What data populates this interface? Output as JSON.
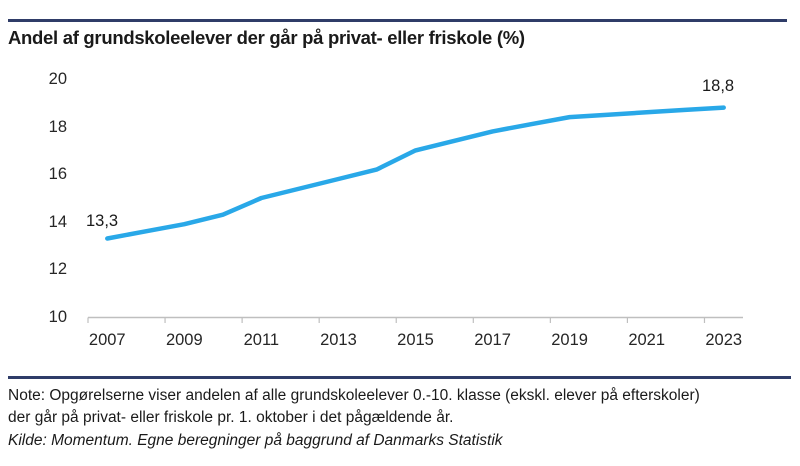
{
  "chart_data": {
    "type": "line",
    "title": "Andel af grundskoleelever der går på privat- eller friskole (%)",
    "xlabel": "",
    "ylabel": "",
    "x": [
      2007,
      2008,
      2009,
      2010,
      2011,
      2012,
      2013,
      2014,
      2015,
      2016,
      2017,
      2018,
      2019,
      2020,
      2021,
      2022,
      2023
    ],
    "values": [
      13.3,
      13.6,
      13.9,
      14.3,
      15.0,
      15.4,
      15.8,
      16.2,
      17.0,
      17.4,
      17.8,
      18.1,
      18.4,
      18.5,
      18.6,
      18.7,
      18.8
    ],
    "ylim": [
      10,
      20
    ],
    "y_ticks": [
      10,
      12,
      14,
      16,
      18,
      20
    ],
    "y_tick_labels": [
      "10",
      "12",
      "14",
      "16",
      "18",
      "20"
    ],
    "x_tick_labels": [
      "2007",
      "2009",
      "2011",
      "2013",
      "2015",
      "2017",
      "2019",
      "2021",
      "2023"
    ],
    "first_point_label": "13,3",
    "last_point_label": "18,8",
    "grid": false,
    "legend": "none",
    "line_color": "#29A8E8",
    "axis_color": "#BFBFBF"
  },
  "footer": {
    "note": "Note: Opgørelserne viser andelen af alle grundskoleelever 0.-10. klasse (ekskl. elever på efterskoler) der går på privat- eller friskole pr. 1. oktober i det pågældende år.",
    "kilde": "Kilde: Momentum. Egne beregninger på baggrund af Danmarks Statistik"
  },
  "colors": {
    "divider_rule": "#2F3C68",
    "line": "#29A8E8",
    "axis": "#BFBFBF",
    "text": "#1A1A1A"
  }
}
